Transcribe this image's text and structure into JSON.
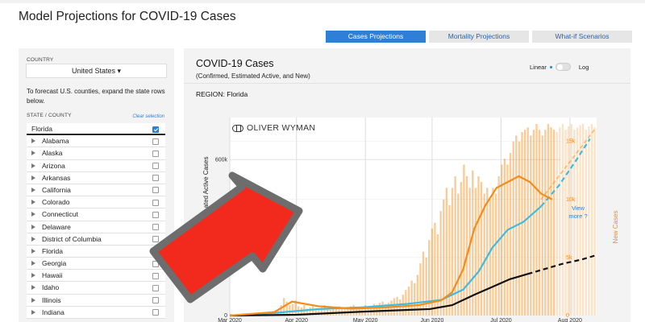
{
  "page": {
    "title": "Model Projections for COVID-19 Cases"
  },
  "tabs": [
    {
      "label": "Cases Projections",
      "active": true
    },
    {
      "label": "Mortality Projections",
      "active": false
    },
    {
      "label": "What-if Scenarios",
      "active": false
    }
  ],
  "sidebar": {
    "country_label": "COUNTRY",
    "country_value": "United States ▾",
    "hint": "To forecast U.S. counties, expand the state rows below.",
    "state_label": "STATE / COUNTY",
    "clear_label": "Clear selection",
    "selected_state": "Florida",
    "states": [
      {
        "name": "Alabama",
        "checked": false
      },
      {
        "name": "Alaska",
        "checked": false
      },
      {
        "name": "Arizona",
        "checked": false
      },
      {
        "name": "Arkansas",
        "checked": false
      },
      {
        "name": "California",
        "checked": false
      },
      {
        "name": "Colorado",
        "checked": false
      },
      {
        "name": "Connecticut",
        "checked": false
      },
      {
        "name": "Delaware",
        "checked": false
      },
      {
        "name": "District of Columbia",
        "checked": false
      },
      {
        "name": "Florida",
        "checked": true
      },
      {
        "name": "Georgia",
        "checked": false
      },
      {
        "name": "Hawaii",
        "checked": false
      },
      {
        "name": "Idaho",
        "checked": false
      },
      {
        "name": "Illinois",
        "checked": false
      },
      {
        "name": "Indiana",
        "checked": false
      }
    ]
  },
  "main": {
    "title": "COVID-19 Cases",
    "subtitle": "(Confirmed, Estimated Active, and New)",
    "region": "REGION: Florida",
    "scale_linear": "Linear",
    "scale_log": "Log",
    "view_more": "View more ?",
    "logo_text": "OLIVER WYMAN"
  },
  "colors": {
    "accent": "#2f7fd7",
    "new_cases": "#f28c1b",
    "active": "#3bbce0",
    "confirmed": "#111111"
  },
  "chart_data": {
    "type": "line",
    "ylabel": "Confirmed and Estimated Active Cases",
    "ylabel_visible": "ated Active Cases",
    "ylabel_visible_prefix": "Conf",
    "y2label": "New Cases",
    "x_ticks": [
      "Mar 2020",
      "Apr 2020",
      "May 2020",
      "Jun 2020",
      "Jul 2020",
      "Aug 2020"
    ],
    "y_ticks": [
      "0",
      "600k"
    ],
    "y2_ticks": [
      "0",
      "5k",
      "10k",
      "15k"
    ],
    "ylim": [
      0,
      700000
    ],
    "y2lim": [
      0,
      16500
    ],
    "x_days": [
      0,
      30,
      61,
      91,
      122,
      153,
      165
    ],
    "series": [
      {
        "name": "Active",
        "x": [
          0,
          20,
          40,
          60,
          80,
          95,
          105,
          112,
          118,
          125,
          132,
          140,
          148,
          156,
          162
        ],
        "values": [
          0,
          10000,
          25000,
          32000,
          45000,
          60000,
          100000,
          170000,
          260000,
          330000,
          360000,
          420000,
          500000,
          600000,
          680000
        ],
        "dashed_from": 148
      },
      {
        "name": "Confirmed",
        "x": [
          0,
          30,
          60,
          90,
          100,
          110,
          118,
          126,
          134,
          142,
          150,
          158,
          164
        ],
        "values": [
          0,
          3000,
          15000,
          25000,
          40000,
          80000,
          110000,
          140000,
          160000,
          180000,
          200000,
          215000,
          230000
        ],
        "dashed_from": 142
      },
      {
        "name": "New cases (7-day avg)",
        "x": [
          0,
          20,
          28,
          40,
          55,
          70,
          85,
          95,
          100,
          105,
          110,
          115,
          120,
          125,
          130,
          135,
          140,
          145
        ],
        "values": [
          0,
          300,
          1200,
          800,
          600,
          700,
          900,
          1300,
          2000,
          4000,
          7500,
          9500,
          11000,
          11500,
          12000,
          11500,
          10500,
          10000
        ],
        "dashed_from": 999
      },
      {
        "name": "Projected new cases",
        "x": [
          140,
          150,
          158,
          164
        ],
        "values": [
          10000,
          12500,
          14500,
          16000
        ]
      }
    ],
    "bars_new_cases": {
      "x_start": 20,
      "x_end": 165,
      "values": [
        200,
        400,
        900,
        1500,
        1200,
        900,
        1000,
        1300,
        800,
        700,
        900,
        600,
        700,
        800,
        600,
        500,
        700,
        900,
        600,
        500,
        600,
        700,
        800,
        700,
        600,
        700,
        800,
        900,
        700,
        600,
        800,
        900,
        700,
        800,
        1000,
        900,
        1100,
        1200,
        1000,
        1100,
        1300,
        1500,
        1600,
        1400,
        1800,
        2200,
        2500,
        3000,
        2800,
        3500,
        4500,
        5500,
        5000,
        6500,
        7500,
        8000,
        7000,
        9000,
        10000,
        11000,
        9500,
        11000,
        12000,
        10500,
        11500,
        13000,
        12000,
        11000,
        12500,
        11000,
        12000,
        11500,
        10500,
        11000,
        10000,
        11000,
        10500,
        12000,
        13000,
        13500,
        13000,
        14000,
        15000,
        15500,
        15000,
        15800,
        16000,
        16200,
        15500,
        16000,
        16500,
        16000,
        15500,
        16000,
        16500,
        16200,
        16000,
        15800,
        16200,
        16500,
        16000,
        16300,
        16500,
        16000,
        16200,
        16400,
        16500,
        16000,
        16300,
        16500,
        16200
      ]
    }
  }
}
